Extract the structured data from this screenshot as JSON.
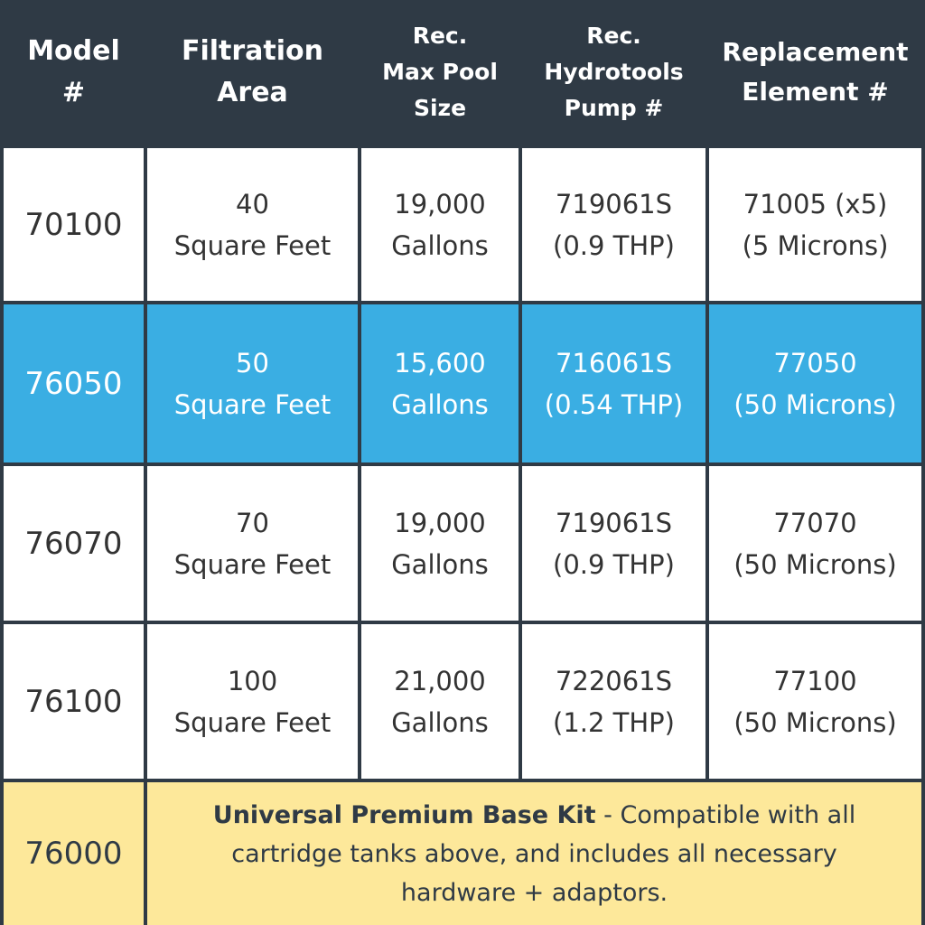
{
  "header": {
    "col1": "Model\n#",
    "col2": "Filtration\nArea",
    "col3": "Rec.\nMax Pool\nSize",
    "col4": "Rec.\nHydrotools\nPump #",
    "col5": "Replacement\nElement #"
  },
  "rows": [
    {
      "model": "70100",
      "area": [
        "40",
        "Square Feet"
      ],
      "pool": [
        "19,000",
        "Gallons"
      ],
      "pump": [
        "719061S",
        "(0.9 THP)"
      ],
      "element": [
        "71005 (x5)",
        "(5 Microns)"
      ]
    },
    {
      "model": "76050",
      "area": [
        "50",
        "Square Feet"
      ],
      "pool": [
        "15,600",
        "Gallons"
      ],
      "pump": [
        "716061S",
        "(0.54 THP)"
      ],
      "element": [
        "77050",
        "(50 Microns)"
      ]
    },
    {
      "model": "76070",
      "area": [
        "70",
        "Square Feet"
      ],
      "pool": [
        "19,000",
        "Gallons"
      ],
      "pump": [
        "719061S",
        "(0.9 THP)"
      ],
      "element": [
        "77070",
        "(50 Microns)"
      ]
    },
    {
      "model": "76100",
      "area": [
        "100",
        "Square Feet"
      ],
      "pool": [
        "21,000",
        "Gallons"
      ],
      "pump": [
        "722061S",
        "(1.2 THP)"
      ],
      "element": [
        "77100",
        "(50 Microns)"
      ]
    }
  ],
  "kit": {
    "model": "76000",
    "title": "Universal Premium Base Kit",
    "description": " - Compatible with all cartridge tanks above, and includes all necessary hardware + adaptors."
  },
  "colors": {
    "header_bg": "#2f3a45",
    "highlight": "#3aaee3",
    "kit_bg": "#fde89a",
    "cell_bg": "#ffffff"
  }
}
